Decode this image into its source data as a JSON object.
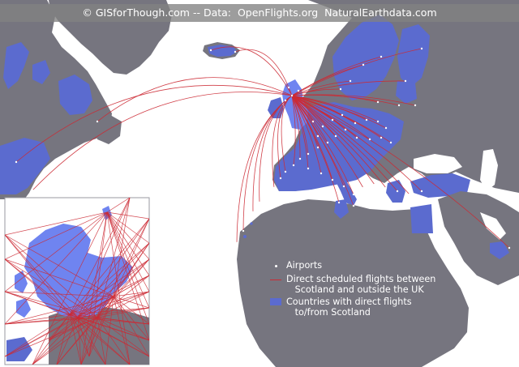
{
  "credit": "© GISforThough.com -- Data:  OpenFlights.org  NaturalEarthdata.com",
  "legend": {
    "airports": "Airports",
    "routes": "Direct scheduled flights between\n   Scotland and outside the UK",
    "countries": "Countries with direct flights\n   to/from Scotland"
  },
  "colors": {
    "ocean": "#ffffff",
    "land": "#76757f",
    "highlighted_country": "#5b6bcf",
    "scotland": "#6f84f0",
    "route": "#cc2a34",
    "airport": "#ffffff"
  },
  "icons": [
    "airport-symbol",
    "route-line-symbol",
    "country-fill-symbol"
  ]
}
